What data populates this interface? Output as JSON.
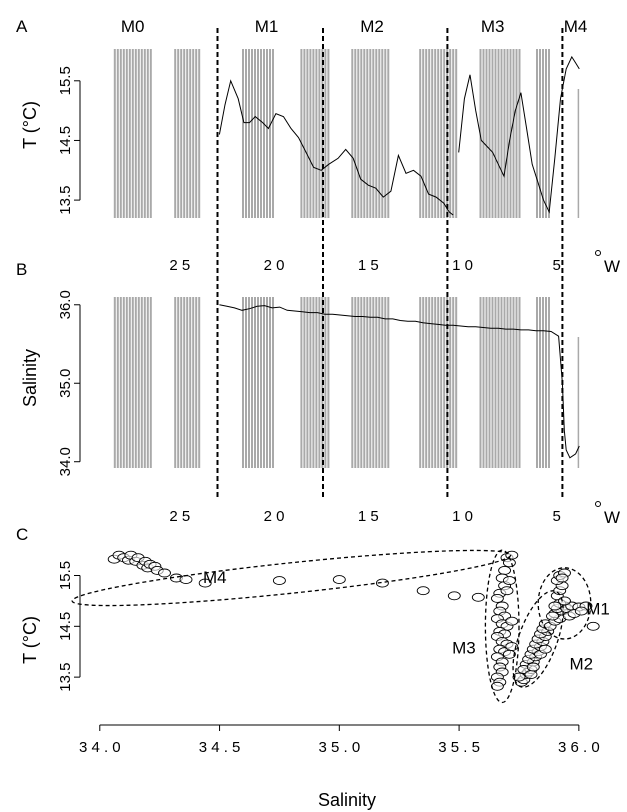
{
  "chart_data": [
    {
      "panel": "A",
      "type": "line",
      "ylabel": "T (°C)",
      "xlabel": "°W",
      "x_reversed": true,
      "xlim": [
        29.5,
        3.5
      ],
      "ylim": [
        13.2,
        16.1
      ],
      "yticks": [
        13.5,
        14.5,
        15.5
      ],
      "ytick_labels": [
        "13.5",
        "14.5",
        "15.5"
      ],
      "xticks": [
        25,
        20,
        15,
        10,
        5
      ],
      "xtick_labels": [
        "2 5",
        "2 0",
        "1 5",
        "1 0",
        "5"
      ],
      "segment_labels": [
        {
          "label": "M0",
          "x": 27.5
        },
        {
          "label": "M1",
          "x": 20.4
        },
        {
          "label": "M2",
          "x": 14.8
        },
        {
          "label": "M3",
          "x": 8.4
        },
        {
          "label": "M4",
          "x": 4.0
        }
      ],
      "boundaries": [
        23.0,
        17.4,
        10.8,
        4.7
      ],
      "shaded_bands": [
        [
          28.5,
          26.5
        ],
        [
          25.3,
          23.9
        ],
        [
          21.7,
          19.9
        ],
        [
          18.6,
          17.1
        ],
        [
          15.9,
          13.9
        ],
        [
          12.3,
          10.3
        ],
        [
          9.1,
          6.9
        ],
        [
          6.1,
          5.3
        ]
      ],
      "series": [
        {
          "x": [
            22.9,
            22.6,
            22.3,
            21.9,
            21.6,
            21.3,
            21.0,
            20.6,
            20.3,
            19.9,
            19.5,
            19.1,
            18.7,
            18.3,
            17.9,
            17.5,
            17.1,
            16.6,
            16.2,
            15.8,
            15.4,
            15.0,
            14.6,
            14.2,
            13.8,
            13.4,
            13.0,
            12.6,
            12.2,
            11.8,
            11.4,
            11.0,
            10.7,
            10.5
          ],
          "y": [
            14.6,
            15.1,
            15.5,
            15.2,
            14.8,
            14.8,
            14.9,
            14.8,
            14.7,
            14.95,
            14.9,
            14.7,
            14.55,
            14.3,
            14.05,
            14.0,
            14.1,
            14.2,
            14.35,
            14.2,
            13.85,
            13.75,
            13.7,
            13.55,
            13.65,
            14.25,
            13.95,
            14.0,
            13.9,
            13.6,
            13.55,
            13.45,
            13.3,
            13.25
          ]
        },
        {
          "x": [
            10.2,
            9.9,
            9.6,
            9.3,
            9.0,
            8.7,
            8.4,
            8.1,
            7.8,
            7.5,
            7.2,
            6.9,
            6.6,
            6.3,
            6.0,
            5.7,
            5.4,
            5.1,
            4.8,
            4.5,
            4.2,
            4.0,
            3.8
          ],
          "y": [
            14.3,
            15.2,
            15.6,
            15.0,
            14.5,
            14.4,
            14.3,
            14.1,
            13.9,
            14.5,
            15.0,
            15.3,
            14.7,
            14.1,
            13.8,
            13.5,
            13.3,
            14.2,
            15.2,
            15.7,
            15.9,
            15.8,
            15.7
          ]
        }
      ]
    },
    {
      "panel": "B",
      "type": "line",
      "ylabel": "Salinity",
      "xlabel": "°W",
      "x_reversed": true,
      "xlim": [
        29.5,
        3.5
      ],
      "ylim": [
        33.92,
        36.15
      ],
      "yticks": [
        34.0,
        35.0,
        36.0
      ],
      "ytick_labels": [
        "34.0",
        "35.0",
        "36.0"
      ],
      "xticks": [
        25,
        20,
        15,
        10,
        5
      ],
      "xtick_labels": [
        "2 5",
        "2 0",
        "1 5",
        "1 0",
        "5"
      ],
      "boundaries": [
        23.0,
        17.4,
        10.8,
        4.7
      ],
      "shaded_bands": [
        [
          28.5,
          26.5
        ],
        [
          25.3,
          23.9
        ],
        [
          21.7,
          19.9
        ],
        [
          18.6,
          17.1
        ],
        [
          15.9,
          13.9
        ],
        [
          12.3,
          10.3
        ],
        [
          9.1,
          6.9
        ],
        [
          6.1,
          5.3
        ]
      ],
      "series": [
        {
          "x": [
            22.9,
            22.5,
            22.1,
            21.7,
            21.3,
            20.9,
            20.5,
            20.1,
            19.7,
            19.3,
            18.9,
            18.5,
            18.1,
            17.7,
            17.3,
            16.9,
            16.5,
            16.1,
            15.7,
            15.3,
            14.9,
            14.5,
            14.1,
            13.7,
            13.3,
            12.9,
            12.5,
            12.1,
            11.7,
            11.3,
            10.9,
            10.5,
            10.1,
            9.7,
            9.3,
            8.9,
            8.5,
            8.1,
            7.7,
            7.3,
            6.9,
            6.5,
            6.1,
            5.7,
            5.3,
            4.9,
            4.7,
            4.6,
            4.5,
            4.3,
            4.0,
            3.8
          ],
          "y": [
            36.0,
            35.98,
            35.96,
            35.93,
            35.95,
            35.98,
            35.99,
            35.96,
            35.97,
            35.93,
            35.92,
            35.91,
            35.9,
            35.9,
            35.88,
            35.88,
            35.87,
            35.86,
            35.85,
            35.85,
            35.84,
            35.84,
            35.82,
            35.82,
            35.8,
            35.79,
            35.79,
            35.77,
            35.76,
            35.75,
            35.74,
            35.74,
            35.73,
            35.72,
            35.72,
            35.71,
            35.7,
            35.7,
            35.69,
            35.69,
            35.68,
            35.68,
            35.67,
            35.67,
            35.66,
            35.6,
            35.0,
            34.4,
            34.15,
            34.05,
            34.1,
            34.2
          ]
        }
      ]
    },
    {
      "panel": "C",
      "type": "scatter",
      "xlabel": "Salinity",
      "ylabel": "T (°C)",
      "xlim": [
        33.98,
        36.13
      ],
      "ylim": [
        13.05,
        16.1
      ],
      "xticks": [
        34.0,
        34.5,
        35.0,
        35.5,
        36.0
      ],
      "xtick_labels": [
        "3 4 . 0",
        "3 4 . 5",
        "3 5 . 0",
        "3 5 . 5",
        "3 6 . 0"
      ],
      "yticks": [
        13.5,
        14.5,
        15.5
      ],
      "ytick_labels": [
        "13.5",
        "14.5",
        "15.5"
      ],
      "groups": [
        {
          "label": "M1",
          "ellipse": {
            "center": [
              35.94,
              14.95
            ],
            "radii": [
              0.11,
              0.7
            ],
            "rotation": 0
          },
          "label_at": [
            36.08,
            14.85
          ]
        },
        {
          "label": "M2",
          "ellipse": {
            "center": [
              35.83,
              14.25
            ],
            "radii": [
              0.08,
              1.0
            ],
            "rotation": 20
          },
          "label_at": [
            36.01,
            13.77
          ]
        },
        {
          "label": "M3",
          "ellipse": {
            "center": [
              35.68,
              14.5
            ],
            "radii": [
              0.07,
              1.5
            ],
            "rotation": 0
          },
          "label_at": [
            35.52,
            14.08
          ]
        },
        {
          "label": "M4",
          "ellipse": {
            "center": [
              34.8,
              15.45
            ],
            "radii": [
              0.92,
              0.3
            ],
            "rotation": -6
          },
          "label_at": [
            34.48,
            15.47
          ]
        }
      ],
      "points": [
        [
          34.06,
          15.82
        ],
        [
          34.08,
          15.9
        ],
        [
          34.1,
          15.85
        ],
        [
          34.12,
          15.8
        ],
        [
          34.13,
          15.9
        ],
        [
          34.15,
          15.78
        ],
        [
          34.16,
          15.85
        ],
        [
          34.18,
          15.7
        ],
        [
          34.19,
          15.78
        ],
        [
          34.2,
          15.65
        ],
        [
          34.21,
          15.72
        ],
        [
          34.23,
          15.68
        ],
        [
          34.24,
          15.6
        ],
        [
          34.27,
          15.55
        ],
        [
          34.32,
          15.45
        ],
        [
          34.36,
          15.42
        ],
        [
          34.44,
          15.35
        ],
        [
          34.75,
          15.4
        ],
        [
          35.0,
          15.42
        ],
        [
          35.18,
          15.35
        ],
        [
          35.35,
          15.2
        ],
        [
          35.48,
          15.1
        ],
        [
          35.58,
          15.07
        ],
        [
          35.7,
          15.85
        ],
        [
          35.72,
          15.9
        ],
        [
          35.71,
          15.75
        ],
        [
          35.69,
          15.6
        ],
        [
          35.68,
          15.45
        ],
        [
          35.69,
          15.3
        ],
        [
          35.67,
          15.15
        ],
        [
          35.66,
          15.05
        ],
        [
          35.7,
          15.2
        ],
        [
          35.68,
          14.9
        ],
        [
          35.67,
          14.8
        ],
        [
          35.69,
          14.7
        ],
        [
          35.66,
          14.65
        ],
        [
          35.68,
          14.55
        ],
        [
          35.7,
          14.5
        ],
        [
          35.67,
          14.4
        ],
        [
          35.69,
          14.35
        ],
        [
          35.66,
          14.3
        ],
        [
          35.68,
          14.2
        ],
        [
          35.7,
          14.15
        ],
        [
          35.67,
          14.05
        ],
        [
          35.69,
          14.0
        ],
        [
          35.66,
          13.9
        ],
        [
          35.68,
          13.8
        ],
        [
          35.67,
          13.7
        ],
        [
          35.68,
          13.6
        ],
        [
          35.66,
          13.5
        ],
        [
          35.67,
          13.4
        ],
        [
          35.66,
          13.32
        ],
        [
          35.72,
          14.6
        ],
        [
          35.72,
          14.1
        ],
        [
          35.71,
          13.95
        ],
        [
          35.71,
          15.4
        ],
        [
          35.76,
          13.4
        ],
        [
          35.77,
          13.45
        ],
        [
          35.78,
          13.55
        ],
        [
          35.79,
          13.6
        ],
        [
          35.8,
          13.65
        ],
        [
          35.78,
          13.75
        ],
        [
          35.81,
          13.8
        ],
        [
          35.79,
          13.85
        ],
        [
          35.82,
          13.9
        ],
        [
          35.8,
          13.95
        ],
        [
          35.83,
          14.0
        ],
        [
          35.81,
          14.05
        ],
        [
          35.84,
          14.1
        ],
        [
          35.82,
          14.15
        ],
        [
          35.85,
          14.2
        ],
        [
          35.83,
          14.25
        ],
        [
          35.86,
          14.3
        ],
        [
          35.84,
          14.35
        ],
        [
          35.87,
          14.4
        ],
        [
          35.85,
          14.45
        ],
        [
          35.86,
          14.55
        ],
        [
          35.88,
          14.5
        ],
        [
          35.77,
          13.65
        ],
        [
          35.8,
          13.55
        ],
        [
          35.75,
          13.5
        ],
        [
          35.81,
          13.7
        ],
        [
          35.84,
          13.95
        ],
        [
          35.86,
          14.05
        ],
        [
          35.9,
          14.6
        ],
        [
          35.92,
          14.65
        ],
        [
          35.9,
          14.75
        ],
        [
          35.93,
          14.8
        ],
        [
          35.91,
          14.85
        ],
        [
          35.94,
          14.9
        ],
        [
          35.92,
          14.95
        ],
        [
          35.95,
          14.85
        ],
        [
          35.97,
          14.9
        ],
        [
          36.0,
          14.88
        ],
        [
          36.03,
          14.9
        ],
        [
          35.91,
          15.1
        ],
        [
          35.92,
          15.2
        ],
        [
          35.93,
          15.3
        ],
        [
          35.91,
          15.4
        ],
        [
          35.92,
          15.5
        ],
        [
          35.94,
          15.55
        ],
        [
          35.93,
          15.45
        ],
        [
          35.94,
          15.0
        ],
        [
          35.96,
          14.7
        ],
        [
          35.98,
          14.75
        ],
        [
          36.01,
          14.8
        ],
        [
          36.06,
          14.5
        ],
        [
          35.89,
          14.7
        ],
        [
          35.9,
          14.9
        ]
      ]
    }
  ]
}
